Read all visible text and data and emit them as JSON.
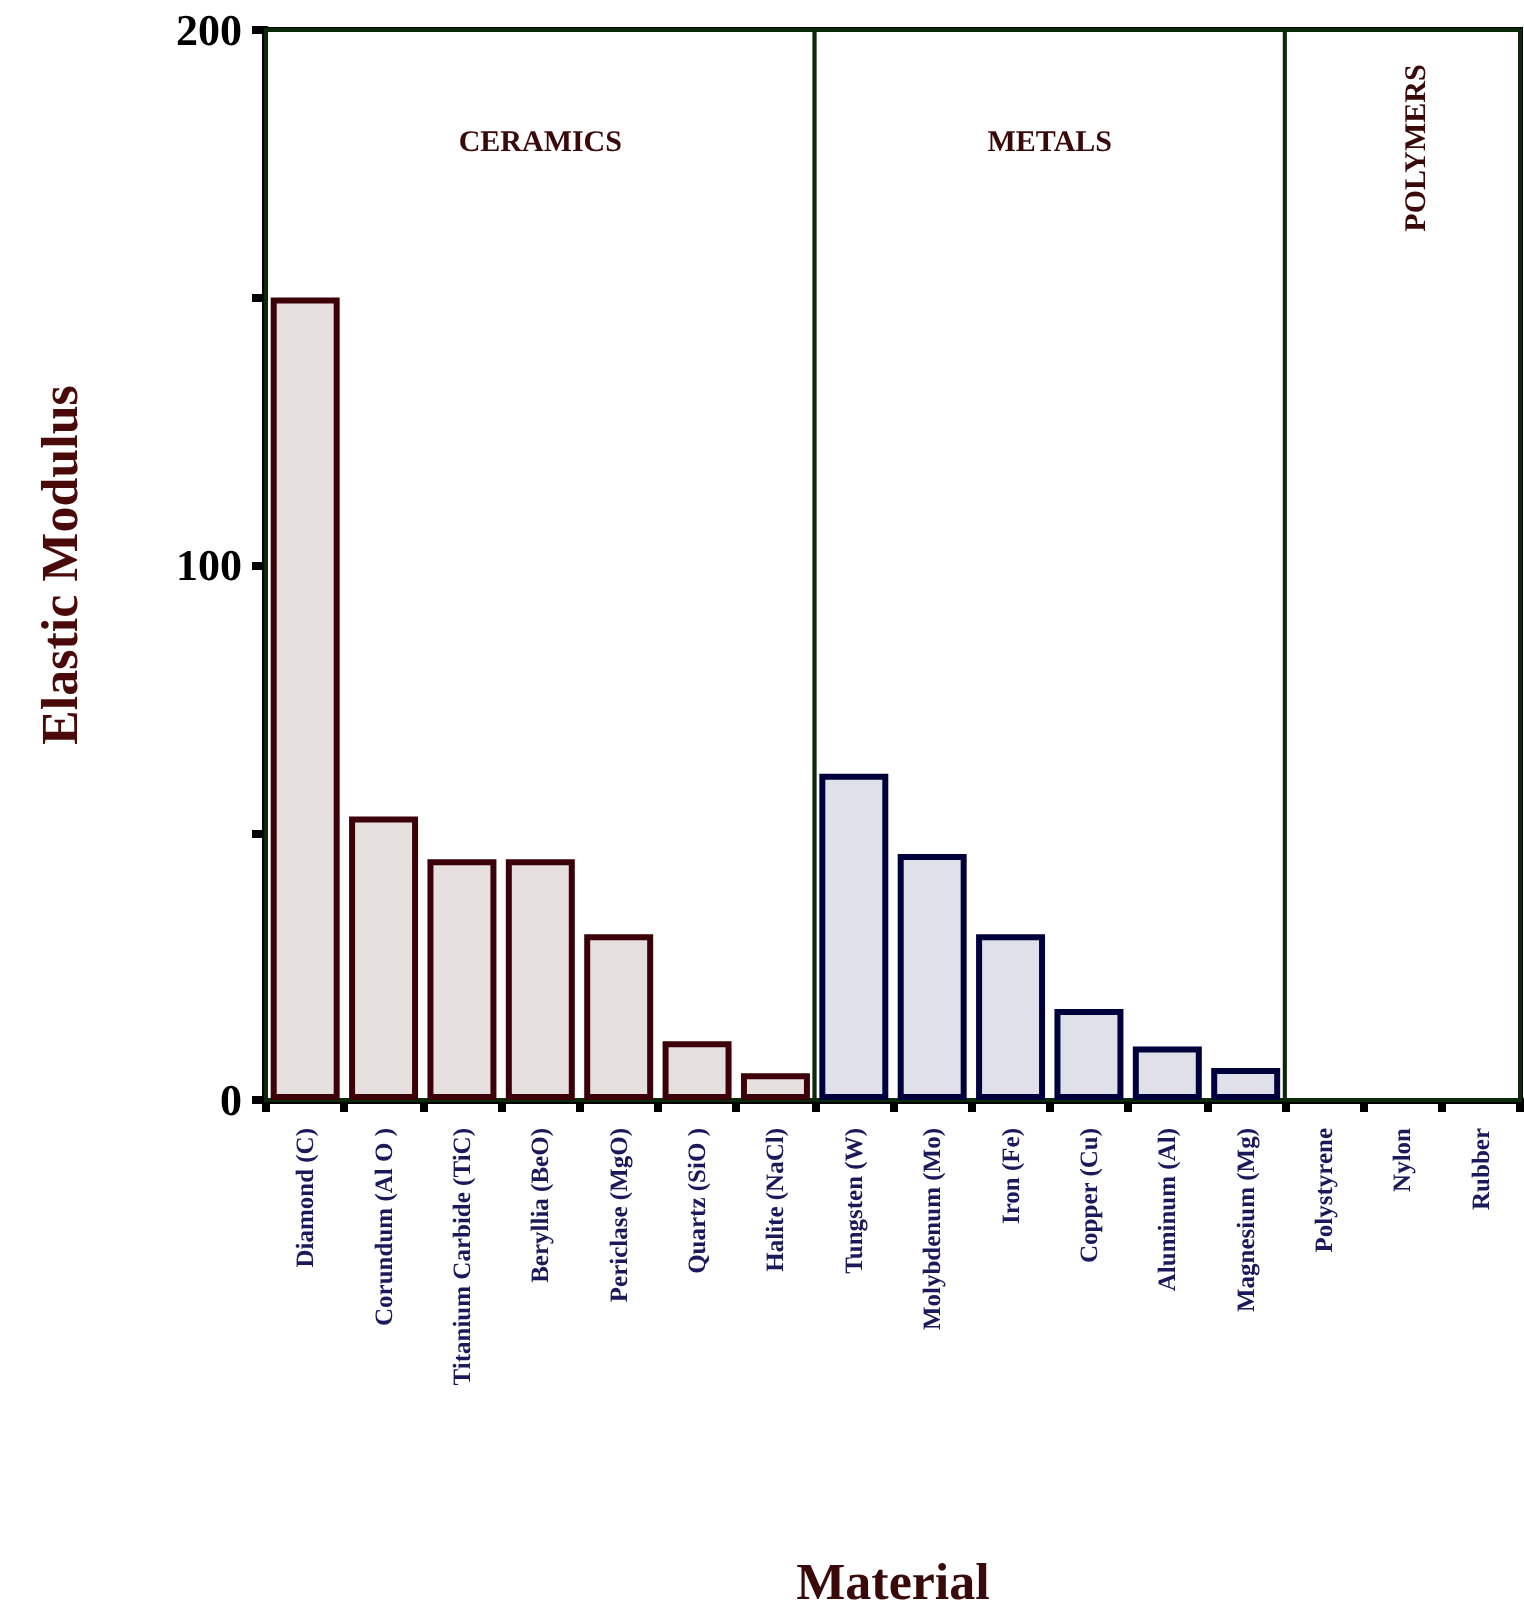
{
  "chart_data": {
    "type": "bar",
    "xlabel": "Material",
    "ylabel": "Elastic Modulus",
    "categories": [
      "Diamond (C)",
      "Corundum (Al O )",
      "Titanium Carbide (TiC)",
      "Beryllia (BeO)",
      "Periclase (MgO)",
      "Quartz (SiO )",
      "Halite (NaCl)",
      "Tungsten (W)",
      "Molybdenum (Mo)",
      "Iron (Fe)",
      "Copper (Cu)",
      "Aluminum (Al)",
      "Magnesium (Mg)",
      "Polystyrene",
      "Nylon",
      "Rubber"
    ],
    "values": [
      150,
      53,
      45,
      45,
      31,
      11,
      5,
      61,
      46,
      31,
      17,
      10,
      6,
      0,
      0,
      0
    ],
    "colors": [
      "#e6dfe0",
      "#e6dfe0",
      "#e6dfe0",
      "#e6dfe0",
      "#e6dfe0",
      "#e6dfe0",
      "#e6dfe0",
      "#e0e0e8",
      "#e0e0e8",
      "#e0e0e8",
      "#e0e0e8",
      "#e0e0e8",
      "#e0e0e8",
      "#e0e0e8",
      "#e0e0e8",
      "#e0e0e8"
    ],
    "ylim": [
      0,
      200
    ],
    "yticks": [
      0,
      {
        "value": 50,
        "label": null
      },
      100,
      {
        "value": 150,
        "label": null
      },
      200
    ],
    "bands": [
      {
        "axis": "x",
        "from": "Diamond (C)",
        "to": "Halite (NaCl)",
        "label": "CERAMICS",
        "color": "#ffffff"
      },
      {
        "axis": "x",
        "from": "Tungsten (W)",
        "to": "Magnesium (Mg)",
        "label": "METALS",
        "color": "#ffffff"
      },
      {
        "axis": "x",
        "from": "Polystyrene",
        "to": "Rubber",
        "label": "POLYMERS",
        "color": "#ffffff"
      }
    ]
  }
}
